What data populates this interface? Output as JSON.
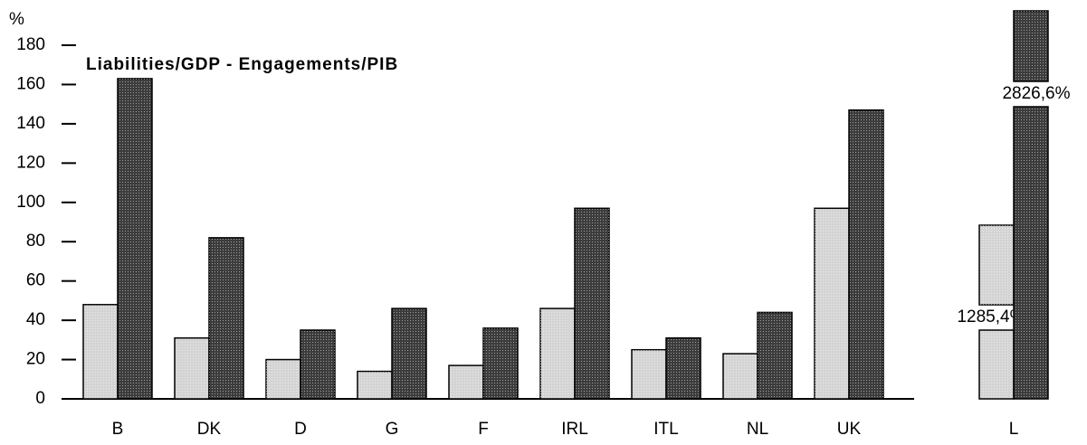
{
  "chart_data": {
    "type": "bar",
    "title": "Liabilities/GDP  -  Engagements/PIB",
    "y_axis_label": "%",
    "categories": [
      "B",
      "DK",
      "D",
      "G",
      "F",
      "IRL",
      "ITL",
      "NL",
      "UK",
      "L"
    ],
    "series": [
      {
        "color": "#d4d4d4",
        "values": [
          48,
          31,
          20,
          14,
          17,
          46,
          25,
          23,
          97,
          1285.4
        ],
        "value_labels": [
          null,
          null,
          null,
          null,
          null,
          null,
          null,
          null,
          null,
          "1285,4%"
        ]
      },
      {
        "color": "#3c3c3c",
        "values": [
          163,
          82,
          35,
          46,
          36,
          97,
          31,
          44,
          147,
          2826.6
        ],
        "value_labels": [
          null,
          null,
          null,
          null,
          null,
          null,
          null,
          null,
          null,
          "2826,6%"
        ]
      }
    ],
    "ylim": [
      0,
      180
    ],
    "yticks": [
      0,
      20,
      40,
      60,
      80,
      100,
      120,
      140,
      160,
      180
    ]
  }
}
